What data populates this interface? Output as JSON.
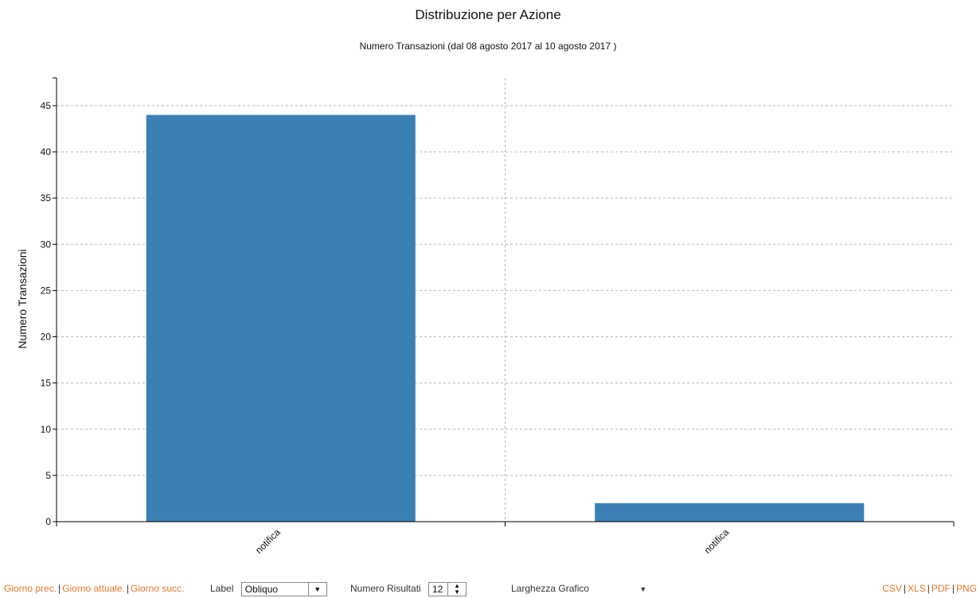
{
  "chart_data": {
    "type": "bar",
    "title": "Distribuzione per Azione",
    "subtitle": "Numero Transazioni (dal 08 agosto 2017 al 10 agosto 2017 )",
    "ylabel": "Numero Transazioni",
    "xlabel": "",
    "categories": [
      "notifica",
      "notifica"
    ],
    "values": [
      44,
      2
    ],
    "ylim": [
      0,
      48
    ],
    "yticks": [
      0,
      5,
      10,
      15,
      20,
      25,
      30,
      35,
      40,
      45
    ],
    "grid": true,
    "bar_color": "#3b80b4"
  },
  "controls": {
    "prev_day": "Giorno prec.",
    "current_day": "Giorno attuale.",
    "next_day": "Giorno succ.",
    "separator": "|",
    "label_caption": "Label",
    "label_value": "Obliquo",
    "results_caption": "Numero Risultati",
    "results_value": "12",
    "width_caption": "Larghezza Grafico",
    "export_csv": "CSV",
    "export_xls": "XLS",
    "export_pdf": "PDF",
    "export_png": "PNG"
  },
  "colors": {
    "link": "#e8782a",
    "bar": "#3b80b4"
  }
}
